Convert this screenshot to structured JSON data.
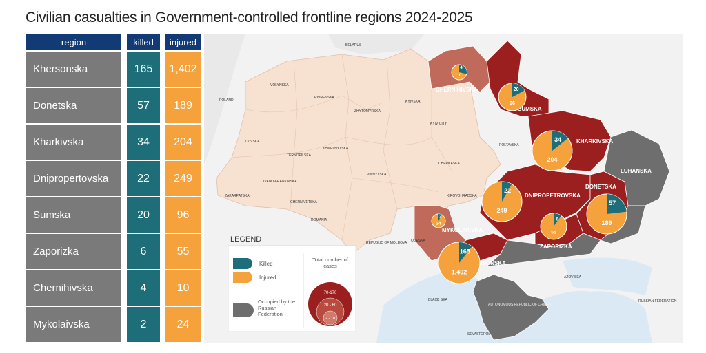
{
  "title": "Civilian casualties in Government-controlled frontline regions 2024-2025",
  "table": {
    "headers": {
      "region": "region",
      "killed": "killed",
      "injured": "injured"
    },
    "rows": [
      {
        "region": "Khersonska",
        "killed": "165",
        "injured": "1,402"
      },
      {
        "region": "Donetska",
        "killed": "57",
        "injured": "189"
      },
      {
        "region": "Kharkivska",
        "killed": "34",
        "injured": "204"
      },
      {
        "region": "Dnipropertovska",
        "killed": "22",
        "injured": "249"
      },
      {
        "region": "Sumska",
        "killed": "20",
        "injured": "96"
      },
      {
        "region": "Zaporizka",
        "killed": "6",
        "injured": "55"
      },
      {
        "region": "Chernihivska",
        "killed": "4",
        "injured": "10"
      },
      {
        "region": "Mykolaivska",
        "killed": "2",
        "injured": "24"
      }
    ]
  },
  "map": {
    "region_labels": {
      "chernihivska": "CHERNIHIVSKA",
      "sumska": "SUMSKA",
      "kharkivska": "KHARKIVSKA",
      "luhanska": "LUHANSKA",
      "donetska": "DONETSKA",
      "dnipropetrovska": "DNIPROPETROVSKA",
      "zaporizka": "ZAPORIZKA",
      "mykolaivska": "MYKOLAIVSKA",
      "khersonska": "KHERSONSKA"
    },
    "minor_labels": {
      "belarus": "BELARUS",
      "poland": "POLAND",
      "romania": "ROMANIA",
      "moldova": "REPUBLIC OF MOLDOVA",
      "black_sea": "BLACK SEA",
      "azov_sea": "AZOV SEA",
      "russia": "RUSSIAN FEDERATION",
      "crimea": "AUTONOMOUS REPUBLIC OF CRIMEA",
      "sevastopol": "SEVASTOPOL",
      "volynska": "VOLYNSKA",
      "rivnenska": "RIVNENSKA",
      "zhytomyrska": "ZHYTOMYRSKA",
      "kyivska": "KYIVSKA",
      "kyiv_city": "KYIV CITY",
      "lvivska": "LVIVSKA",
      "ternopilska": "TERNOPILSKA",
      "khmelnytska": "KHMELNYTSKA",
      "vinnytska": "VINNYTSKA",
      "cherkaska": "CHERKASKA",
      "poltavska": "POLTAVSKA",
      "kirovohradska": "KIROVOHRADSKA",
      "odeska": "ODESKA",
      "zakarpatska": "ZAKARPATSKA",
      "ivano_frankivska": "IVANO-FRANKIVSKA",
      "chernivetska": "CHERNIVETSKA"
    },
    "legend": {
      "title": "LEGEND",
      "killed": "Killed",
      "injured": "Injured",
      "occupied": "Occupied by the Russian Federation",
      "total_title": "Total number of cases",
      "range_high": "70-170",
      "range_mid": "20 - 60",
      "range_low": "2 - 10"
    },
    "colors": {
      "killed": "#1d6e78",
      "injured": "#f5a23c",
      "occupied": "#6e6e6e",
      "high": "#9c1f1f",
      "mid": "#c06a5c",
      "government": "#f7e2d2",
      "sea": "#dbe9f4"
    }
  }
}
